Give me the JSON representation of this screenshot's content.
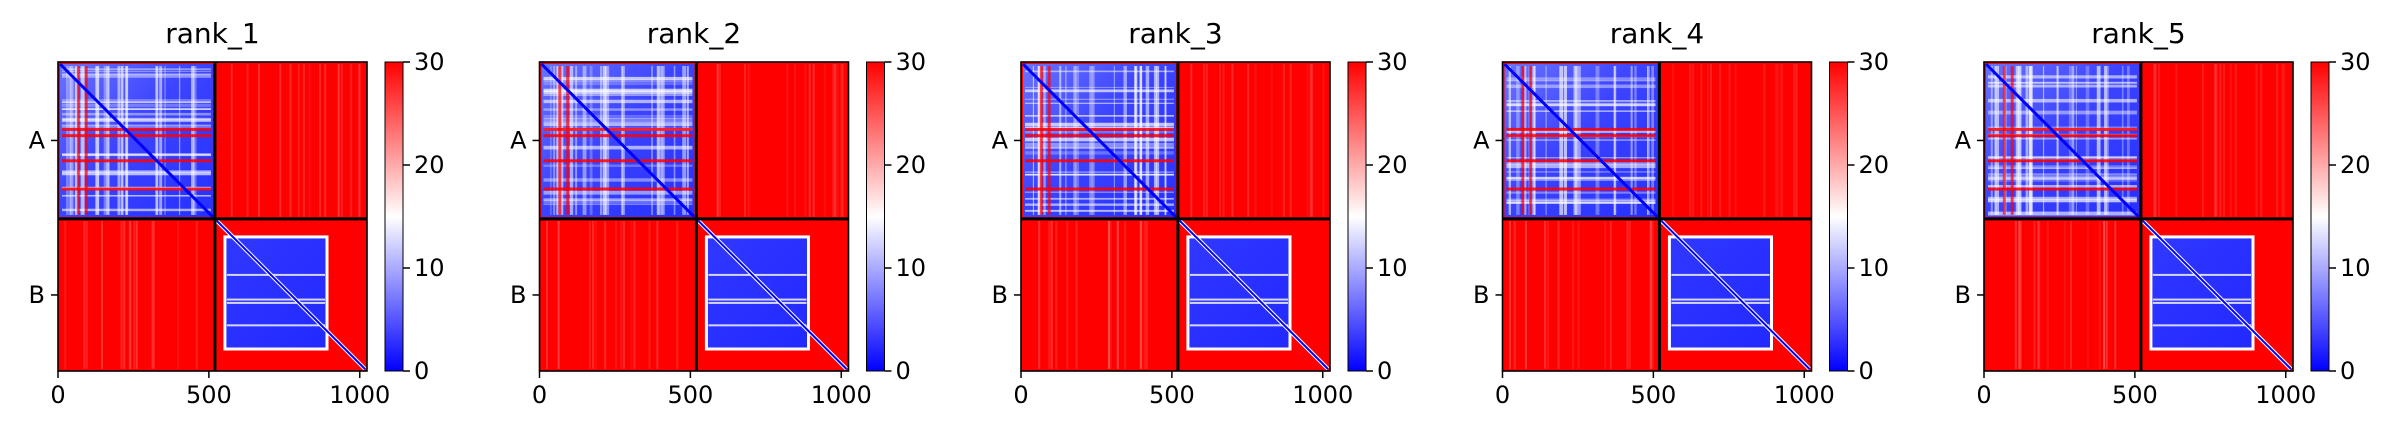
{
  "chart_data": [
    {
      "type": "heatmap",
      "title": "rank_1",
      "xticks": [
        0,
        500,
        1000
      ],
      "yticks": [
        "A",
        "B"
      ],
      "xlim": [
        0,
        1024
      ],
      "chain_boundary": 520,
      "colorbar": {
        "ticks": [
          0,
          10,
          20,
          30
        ],
        "vmin": 0,
        "vmax": 30
      }
    },
    {
      "type": "heatmap",
      "title": "rank_2",
      "xticks": [
        0,
        500,
        1000
      ],
      "yticks": [
        "A",
        "B"
      ],
      "xlim": [
        0,
        1024
      ],
      "chain_boundary": 520,
      "colorbar": {
        "ticks": [
          0,
          10,
          20,
          30
        ],
        "vmin": 0,
        "vmax": 30
      }
    },
    {
      "type": "heatmap",
      "title": "rank_3",
      "xticks": [
        0,
        500,
        1000
      ],
      "yticks": [
        "A",
        "B"
      ],
      "xlim": [
        0,
        1024
      ],
      "chain_boundary": 520,
      "colorbar": {
        "ticks": [
          0,
          10,
          20,
          30
        ],
        "vmin": 0,
        "vmax": 30
      }
    },
    {
      "type": "heatmap",
      "title": "rank_4",
      "xticks": [
        0,
        500,
        1000
      ],
      "yticks": [
        "A",
        "B"
      ],
      "xlim": [
        0,
        1024
      ],
      "chain_boundary": 520,
      "colorbar": {
        "ticks": [
          0,
          10,
          20,
          30
        ],
        "vmin": 0,
        "vmax": 30
      }
    },
    {
      "type": "heatmap",
      "title": "rank_5",
      "xticks": [
        0,
        500,
        1000
      ],
      "yticks": [
        "A",
        "B"
      ],
      "xlim": [
        0,
        1024
      ],
      "chain_boundary": 520,
      "colorbar": {
        "ticks": [
          0,
          10,
          20,
          30
        ],
        "vmin": 0,
        "vmax": 30
      }
    }
  ],
  "colors": {
    "low": "#0000ff",
    "mid": "#ffffff",
    "high": "#ff0000",
    "frame": "#000000"
  }
}
